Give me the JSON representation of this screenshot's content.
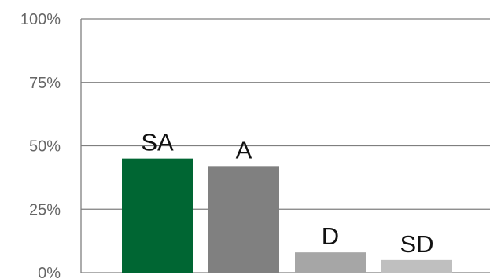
{
  "chart_data": {
    "type": "bar",
    "categories": [
      "SA",
      "A",
      "D",
      "SD"
    ],
    "values": [
      45,
      42,
      8,
      5
    ],
    "value_unit": "%",
    "title": "",
    "xlabel": "",
    "ylabel": "",
    "ylim": [
      0,
      100
    ],
    "y_ticks": [
      0,
      25,
      50,
      75,
      100
    ],
    "y_tick_labels": [
      "0%",
      "25%",
      "50%",
      "75%",
      "100%"
    ],
    "grid": true,
    "legend": "none",
    "colors": [
      "#006633",
      "#808080",
      "#a6a6a6",
      "#bfbfbf"
    ],
    "grid_color": "#7f7f7f",
    "axis_color": "#7f7f7f"
  }
}
